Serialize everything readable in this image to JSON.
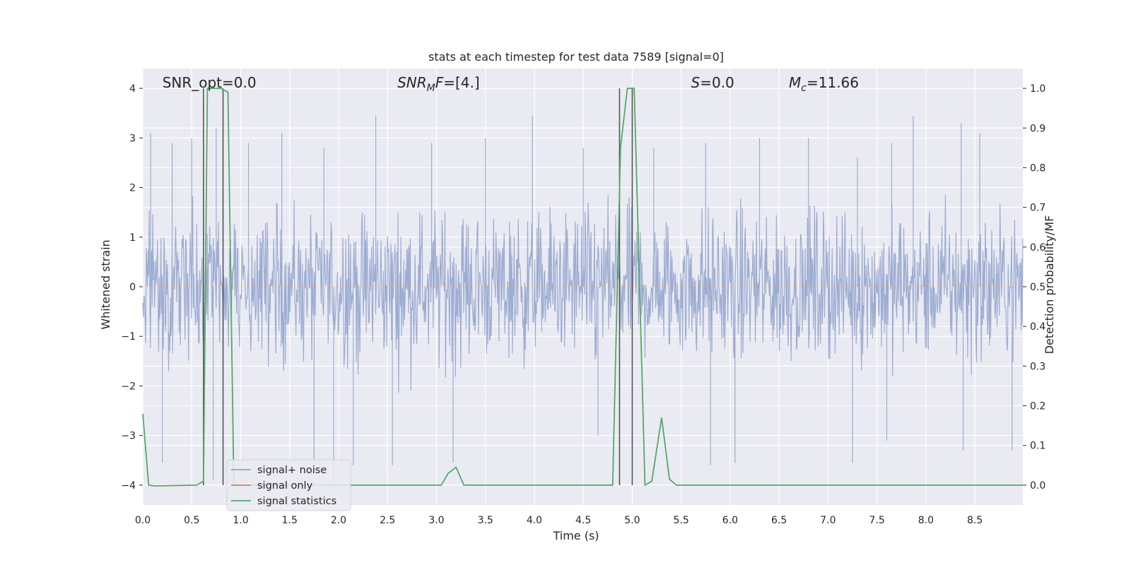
{
  "chart_data": {
    "type": "line",
    "title": "stats at each timestep for test data 7589 [signal=0]",
    "xlabel": "Time (s)",
    "ylabel": "Whitened strain",
    "y2label": "Detection probability/MF",
    "xlim": [
      0.0,
      8.99
    ],
    "ylim": [
      -4.4,
      4.4
    ],
    "y2lim": [
      -0.05,
      1.05
    ],
    "xticks": [
      "0.0",
      "0.5",
      "1.0",
      "1.5",
      "2.0",
      "2.5",
      "3.0",
      "3.5",
      "4.0",
      "4.5",
      "5.0",
      "5.5",
      "6.0",
      "6.5",
      "7.0",
      "7.5",
      "8.0",
      "8.5"
    ],
    "yticks": [
      "−4",
      "−3",
      "−2",
      "−1",
      "0",
      "1",
      "2",
      "3",
      "4"
    ],
    "y2ticks": [
      "0.0",
      "0.1",
      "0.2",
      "0.3",
      "0.4",
      "0.5",
      "0.6",
      "0.7",
      "0.8",
      "0.9",
      "1.0"
    ],
    "grid": true,
    "legend_position": "lower-left",
    "annotations": [
      {
        "text": "SNR_opt=0.0",
        "x": 0.2
      },
      {
        "text": "SNR_MF=[4.]",
        "x": 2.6
      },
      {
        "text": "S=0.0",
        "x": 5.6
      },
      {
        "text": "M_c=11.66",
        "x": 6.6
      }
    ],
    "vertical_lines": [
      0.62,
      0.82,
      4.87,
      5.0
    ],
    "series": [
      {
        "name": "signal+ noise",
        "axis": "left",
        "color": "#8fa2cc",
        "kind": "noise",
        "typical_range": [
          -2.2,
          2.4
        ],
        "peaks": [
          [
            0.08,
            3.1
          ],
          [
            0.3,
            2.9
          ],
          [
            0.5,
            3.0
          ],
          [
            0.75,
            3.2
          ],
          [
            1.08,
            2.9
          ],
          [
            1.42,
            3.1
          ],
          [
            1.85,
            2.8
          ],
          [
            2.38,
            3.45
          ],
          [
            2.95,
            2.9
          ],
          [
            3.5,
            3.0
          ],
          [
            3.98,
            3.45
          ],
          [
            4.5,
            2.8
          ],
          [
            5.22,
            2.8
          ],
          [
            5.75,
            2.9
          ],
          [
            6.3,
            3.0
          ],
          [
            6.8,
            3.0
          ],
          [
            7.3,
            2.6
          ],
          [
            7.65,
            2.9
          ],
          [
            7.87,
            3.45
          ],
          [
            8.36,
            3.3
          ],
          [
            8.55,
            3.1
          ],
          [
            0.2,
            -3.55
          ],
          [
            0.72,
            -3.9
          ],
          [
            1.75,
            -3.7
          ],
          [
            1.95,
            -4.0
          ],
          [
            2.15,
            -3.6
          ],
          [
            2.55,
            -3.6
          ],
          [
            3.17,
            -3.55
          ],
          [
            4.65,
            -3.0
          ],
          [
            5.8,
            -3.6
          ],
          [
            6.05,
            -3.55
          ],
          [
            7.25,
            -3.55
          ],
          [
            7.6,
            -3.1
          ],
          [
            8.38,
            -3.3
          ],
          [
            8.88,
            -3.3
          ]
        ]
      },
      {
        "name": "signal only",
        "axis": "left",
        "color": "#dd8452",
        "x": [
          0.0,
          8.99
        ],
        "y": [
          0.0,
          0.0
        ]
      },
      {
        "name": "signal statistics",
        "axis": "right",
        "color": "#55a868",
        "x": [
          0.0,
          0.06,
          0.12,
          0.55,
          0.62,
          0.66,
          0.72,
          0.8,
          0.87,
          0.93,
          3.05,
          3.12,
          3.2,
          3.28,
          4.8,
          4.88,
          4.95,
          5.02,
          5.13,
          5.2,
          5.3,
          5.38,
          5.45,
          8.99
        ],
        "y": [
          0.18,
          0.0,
          -0.002,
          0.0,
          0.01,
          1.0,
          1.0,
          1.0,
          0.99,
          0.0,
          0.0,
          0.03,
          0.045,
          0.0,
          0.0,
          0.85,
          1.0,
          1.0,
          0.0,
          0.01,
          0.17,
          0.015,
          0.0,
          0.0
        ]
      }
    ]
  }
}
